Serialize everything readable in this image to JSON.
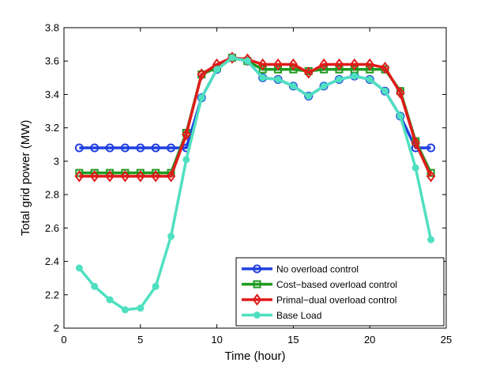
{
  "chart_data": {
    "type": "line",
    "title": "",
    "xlabel": "Time (hour)",
    "ylabel": "Total grid power (MW)",
    "xlim": [
      0,
      25
    ],
    "ylim": [
      2,
      3.8
    ],
    "xticks": [
      0,
      5,
      10,
      15,
      20,
      25
    ],
    "xtick_labels": [
      "0",
      "5",
      "10",
      "15",
      "20",
      "25"
    ],
    "yticks": [
      2,
      2.2,
      2.4,
      2.6,
      2.8,
      3,
      3.2,
      3.4,
      3.6,
      3.8
    ],
    "ytick_labels": [
      "2",
      "2.2",
      "2.4",
      "2.6",
      "2.8",
      "3",
      "3.2",
      "3.4",
      "3.6",
      "3.8"
    ],
    "grid": false,
    "legend_position": "bottom-right",
    "x": [
      1,
      2,
      3,
      4,
      5,
      6,
      7,
      8,
      9,
      10,
      11,
      12,
      13,
      14,
      15,
      16,
      17,
      18,
      19,
      20,
      21,
      22,
      23,
      24
    ],
    "series": [
      {
        "name": "No overload control",
        "color": "#1f3fe0",
        "marker": "circle",
        "values": [
          3.08,
          3.08,
          3.08,
          3.08,
          3.08,
          3.08,
          3.08,
          3.08,
          3.38,
          3.55,
          3.62,
          3.6,
          3.5,
          3.49,
          3.45,
          3.39,
          3.45,
          3.49,
          3.51,
          3.49,
          3.42,
          3.27,
          3.08,
          3.08
        ]
      },
      {
        "name": "Cost−based overload control",
        "color": "#1f9a1f",
        "marker": "square",
        "values": [
          2.93,
          2.93,
          2.93,
          2.93,
          2.93,
          2.93,
          2.93,
          3.17,
          3.52,
          3.56,
          3.62,
          3.6,
          3.55,
          3.55,
          3.55,
          3.54,
          3.55,
          3.55,
          3.55,
          3.55,
          3.55,
          3.42,
          3.12,
          2.93
        ]
      },
      {
        "name": "Primal−dual overload control",
        "color": "#e01b1b",
        "marker": "diamond",
        "values": [
          2.91,
          2.91,
          2.91,
          2.91,
          2.91,
          2.91,
          2.91,
          3.16,
          3.52,
          3.58,
          3.62,
          3.61,
          3.58,
          3.58,
          3.58,
          3.53,
          3.58,
          3.58,
          3.58,
          3.58,
          3.56,
          3.41,
          3.11,
          2.91
        ]
      },
      {
        "name": "Base Load",
        "color": "#4fe0c0",
        "marker": "filled-circle",
        "values": [
          2.36,
          2.25,
          2.17,
          2.11,
          2.12,
          2.25,
          2.55,
          3.01,
          3.38,
          3.55,
          3.62,
          3.6,
          3.5,
          3.49,
          3.45,
          3.39,
          3.45,
          3.49,
          3.51,
          3.49,
          3.42,
          3.27,
          2.96,
          2.53
        ]
      }
    ]
  }
}
